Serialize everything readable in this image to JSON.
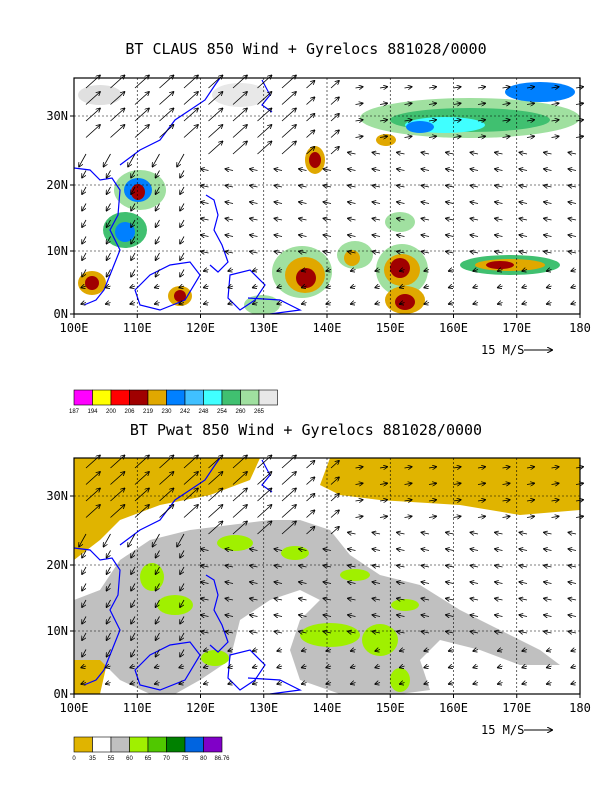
{
  "maps": [
    {
      "title": "BT CLAUS 850 Wind + Gyrelocs 881028/0000",
      "lat_ticks": [
        "30N",
        "20N",
        "10N",
        "0N"
      ],
      "lon_ticks": [
        "100E",
        "110E",
        "120E",
        "130E",
        "140E",
        "150E",
        "160E",
        "170E",
        "180"
      ],
      "vector_label": "15 M/S",
      "colorbar": {
        "labels": [
          "187",
          "194",
          "200",
          "206",
          "219",
          "230",
          "242",
          "248",
          "254",
          "260",
          "265"
        ],
        "colors": [
          "#ff00ff",
          "#ffff00",
          "#ff0000",
          "#a00000",
          "#e0a800",
          "#0080ff",
          "#40c0ff",
          "#40ffff",
          "#40c070",
          "#a0e0a0",
          "#e8e8e8"
        ]
      }
    },
    {
      "title": "BT Pwat 850 Wind + Gyrelocs 881028/0000",
      "lat_ticks": [
        "30N",
        "20N",
        "10N",
        "0N"
      ],
      "lon_ticks": [
        "100E",
        "110E",
        "120E",
        "130E",
        "140E",
        "150E",
        "160E",
        "170E",
        "180"
      ],
      "vector_label": "15 M/S",
      "colorbar": {
        "labels": [
          "0",
          "35",
          "55",
          "60",
          "65",
          "70",
          "75",
          "80",
          "86.76"
        ],
        "colors": [
          "#e0b400",
          "#ffffff",
          "#c0c0c0",
          "#a0f000",
          "#50c800",
          "#008000",
          "#0064e0",
          "#8000c8"
        ]
      }
    }
  ]
}
